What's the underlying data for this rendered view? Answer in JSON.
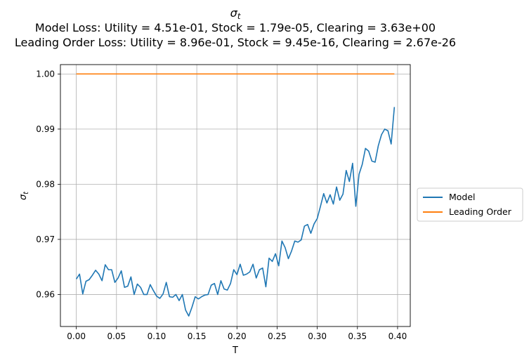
{
  "chart_data": {
    "type": "line",
    "title_lines": [
      "σ_t",
      "Model Loss: Utility = 4.51e-01, Stock = 1.79e-05, Clearing = 3.63e+00",
      "Leading Order Loss: Utility = 8.96e-01, Stock = 9.45e-16, Clearing = 2.67e-26"
    ],
    "xlabel": "T",
    "ylabel": "σ_t",
    "xlim": [
      -0.0198,
      0.4158
    ],
    "ylim": [
      0.9542,
      1.0017
    ],
    "x_ticks": [
      0.0,
      0.05,
      0.1,
      0.15,
      0.2,
      0.25,
      0.3,
      0.35,
      0.4
    ],
    "x_tick_labels": [
      "0.00",
      "0.05",
      "0.10",
      "0.15",
      "0.20",
      "0.25",
      "0.30",
      "0.35",
      "0.40"
    ],
    "y_ticks": [
      0.96,
      0.97,
      0.98,
      0.99,
      1.0
    ],
    "y_tick_labels": [
      "0.96",
      "0.97",
      "0.98",
      "0.99",
      "1.00"
    ],
    "grid": true,
    "legend_position": "right-outside",
    "x": [
      0.0,
      0.004,
      0.008,
      0.012,
      0.016,
      0.02,
      0.024,
      0.028,
      0.032,
      0.036,
      0.04,
      0.044,
      0.048,
      0.052,
      0.056,
      0.06,
      0.064,
      0.068,
      0.072,
      0.076,
      0.08,
      0.084,
      0.088,
      0.092,
      0.096,
      0.1,
      0.104,
      0.108,
      0.112,
      0.116,
      0.12,
      0.124,
      0.128,
      0.132,
      0.136,
      0.14,
      0.144,
      0.148,
      0.152,
      0.156,
      0.16,
      0.164,
      0.168,
      0.172,
      0.176,
      0.18,
      0.184,
      0.188,
      0.192,
      0.196,
      0.2,
      0.204,
      0.208,
      0.212,
      0.216,
      0.22,
      0.224,
      0.228,
      0.232,
      0.236,
      0.24,
      0.244,
      0.248,
      0.252,
      0.256,
      0.26,
      0.264,
      0.268,
      0.272,
      0.276,
      0.28,
      0.284,
      0.288,
      0.292,
      0.296,
      0.3,
      0.304,
      0.308,
      0.312,
      0.316,
      0.32,
      0.324,
      0.328,
      0.332,
      0.336,
      0.34,
      0.344,
      0.348,
      0.352,
      0.356,
      0.36,
      0.364,
      0.368,
      0.372,
      0.376,
      0.38,
      0.384,
      0.388,
      0.392,
      0.396
    ],
    "series": [
      {
        "name": "Model",
        "color": "#1f77b4",
        "values": [
          0.9628,
          0.9637,
          0.9601,
          0.9624,
          0.9627,
          0.9635,
          0.9644,
          0.9637,
          0.9625,
          0.9654,
          0.9645,
          0.9645,
          0.9622,
          0.963,
          0.9643,
          0.9613,
          0.9615,
          0.9632,
          0.96,
          0.9619,
          0.9613,
          0.96,
          0.96,
          0.9618,
          0.9607,
          0.9597,
          0.9593,
          0.9601,
          0.9622,
          0.9596,
          0.9595,
          0.96,
          0.9589,
          0.96,
          0.9572,
          0.9561,
          0.9577,
          0.9596,
          0.9592,
          0.9596,
          0.9599,
          0.96,
          0.9617,
          0.962,
          0.96,
          0.9625,
          0.961,
          0.9608,
          0.962,
          0.9645,
          0.9636,
          0.9655,
          0.9635,
          0.9637,
          0.9641,
          0.9655,
          0.963,
          0.9645,
          0.9648,
          0.9614,
          0.9666,
          0.966,
          0.9674,
          0.9652,
          0.9697,
          0.9685,
          0.9665,
          0.9679,
          0.9697,
          0.9695,
          0.9699,
          0.9724,
          0.9727,
          0.9711,
          0.9728,
          0.9738,
          0.976,
          0.9783,
          0.9766,
          0.9781,
          0.9764,
          0.9795,
          0.9771,
          0.9782,
          0.9825,
          0.9805,
          0.9838,
          0.976,
          0.9818,
          0.9836,
          0.9865,
          0.986,
          0.9842,
          0.984,
          0.987,
          0.989,
          0.99,
          0.9897,
          0.9873,
          0.994
        ]
      },
      {
        "name": "Leading Order",
        "color": "#ff7f0e",
        "values": [
          1.0,
          1.0,
          1.0,
          1.0,
          1.0,
          1.0,
          1.0,
          1.0,
          1.0,
          1.0,
          1.0,
          1.0,
          1.0,
          1.0,
          1.0,
          1.0,
          1.0,
          1.0,
          1.0,
          1.0,
          1.0,
          1.0,
          1.0,
          1.0,
          1.0,
          1.0,
          1.0,
          1.0,
          1.0,
          1.0,
          1.0,
          1.0,
          1.0,
          1.0,
          1.0,
          1.0,
          1.0,
          1.0,
          1.0,
          1.0,
          1.0,
          1.0,
          1.0,
          1.0,
          1.0,
          1.0,
          1.0,
          1.0,
          1.0,
          1.0,
          1.0,
          1.0,
          1.0,
          1.0,
          1.0,
          1.0,
          1.0,
          1.0,
          1.0,
          1.0,
          1.0,
          1.0,
          1.0,
          1.0,
          1.0,
          1.0,
          1.0,
          1.0,
          1.0,
          1.0,
          1.0,
          1.0,
          1.0,
          1.0,
          1.0,
          1.0,
          1.0,
          1.0,
          1.0,
          1.0,
          1.0,
          1.0,
          1.0,
          1.0,
          1.0,
          1.0,
          1.0,
          1.0,
          1.0,
          1.0,
          1.0,
          1.0,
          1.0,
          1.0,
          1.0,
          1.0,
          1.0,
          1.0,
          1.0,
          1.0
        ]
      }
    ]
  }
}
